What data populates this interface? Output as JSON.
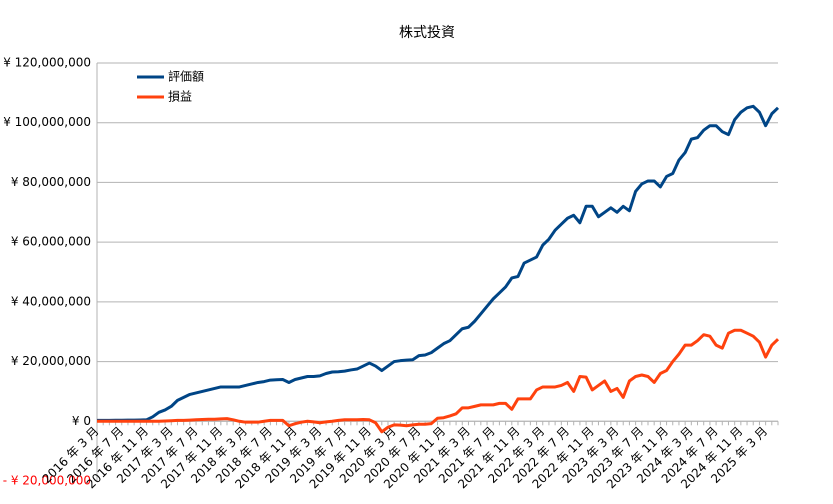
{
  "chart_data": {
    "type": "line",
    "title": "株式投資",
    "categories": [
      "2016 年 3 月",
      null,
      null,
      null,
      "2016 年 7 月",
      null,
      null,
      null,
      "2016 年 11 月",
      null,
      null,
      null,
      "2017 年 3 月",
      null,
      null,
      null,
      "2017 年 7 月",
      null,
      null,
      null,
      "2017 年 11 月",
      null,
      null,
      null,
      "2018 年 3 月",
      null,
      null,
      null,
      "2018 年 7 月",
      null,
      null,
      null,
      "2018 年 11 月",
      null,
      null,
      null,
      "2019 年 3 月",
      null,
      null,
      null,
      "2019 年 7 月",
      null,
      null,
      null,
      "2019 年 11 月",
      null,
      null,
      null,
      "2020 年 3 月",
      null,
      null,
      null,
      "2020 年 7 月",
      null,
      null,
      null,
      "2020 年 11 月",
      null,
      null,
      null,
      "2021 年 3 月",
      null,
      null,
      null,
      "2021 年 7 月",
      null,
      null,
      null,
      "2021 年 11 月",
      null,
      null,
      null,
      "2022 年 3 月",
      null,
      null,
      null,
      "2022 年 7 月",
      null,
      null,
      null,
      "2022 年 11 月",
      null,
      null,
      null,
      "2023 年 3 月",
      null,
      null,
      null,
      "2023 年 7 月",
      null,
      null,
      null,
      "2023 年 11 月",
      null,
      null,
      null,
      "2024 年 3 月",
      null,
      null,
      null,
      "2024 年 7 月",
      null,
      null,
      null,
      "2024 年 11 月",
      null,
      null,
      null,
      "2025 年 3 月",
      null,
      null
    ],
    "series": [
      {
        "name": "評価額",
        "color": "#004586",
        "values": [
          300000,
          300000,
          300000,
          350000,
          350000,
          400000,
          400000,
          450000,
          500000,
          1500000,
          3000000,
          3800000,
          5000000,
          7000000,
          8000000,
          9000000,
          9500000,
          10000000,
          10500000,
          11000000,
          11500000,
          11500000,
          11500000,
          11500000,
          12000000,
          12500000,
          13000000,
          13300000,
          13800000,
          13900000,
          14000000,
          13000000,
          14000000,
          14500000,
          15000000,
          15000000,
          15200000,
          16000000,
          16500000,
          16600000,
          16800000,
          17200000,
          17500000,
          18500000,
          19500000,
          18500000,
          17000000,
          18500000,
          20000000,
          20300000,
          20500000,
          20600000,
          22000000,
          22200000,
          23000000,
          24500000,
          26000000,
          27000000,
          29000000,
          31000000,
          31500000,
          33500000,
          36000000,
          38500000,
          41000000,
          43000000,
          45000000,
          48000000,
          48500000,
          53000000,
          54000000,
          55000000,
          59000000,
          61000000,
          64000000,
          66000000,
          68000000,
          69000000,
          66500000,
          72000000,
          72000000,
          68500000,
          70000000,
          71500000,
          70000000,
          72000000,
          70500000,
          77000000,
          79500000,
          80500000,
          80500000,
          78500000,
          82000000,
          83000000,
          87500000,
          90000000,
          94500000,
          95000000,
          97500000,
          99000000,
          99000000,
          97000000,
          96000000,
          101000000,
          103500000,
          105000000,
          105500000,
          103500000,
          99000000,
          103000000,
          105000000
        ]
      },
      {
        "name": "損益",
        "color": "#ff420e",
        "values": [
          0,
          0,
          0,
          0,
          0,
          0,
          0,
          0,
          0,
          0,
          0,
          100000,
          200000,
          300000,
          300000,
          400000,
          500000,
          600000,
          700000,
          700000,
          800000,
          900000,
          500000,
          0,
          -300000,
          -300000,
          -300000,
          0,
          300000,
          300000,
          300000,
          -1500000,
          -800000,
          -300000,
          0,
          -200000,
          -500000,
          -200000,
          0,
          300000,
          500000,
          500000,
          500000,
          600000,
          500000,
          -500000,
          -3500000,
          -2000000,
          -1200000,
          -1300000,
          -1500000,
          -1200000,
          -1000000,
          -1000000,
          -800000,
          1000000,
          1200000,
          1800000,
          2500000,
          4500000,
          4500000,
          5000000,
          5500000,
          5500000,
          5500000,
          6000000,
          6000000,
          4000000,
          7500000,
          7500000,
          7500000,
          10500000,
          11500000,
          11500000,
          11500000,
          12000000,
          13000000,
          10000000,
          15000000,
          14800000,
          10500000,
          12000000,
          13500000,
          10000000,
          11000000,
          8000000,
          13500000,
          15000000,
          15500000,
          15000000,
          13000000,
          16000000,
          17000000,
          20000000,
          22500000,
          25500000,
          25500000,
          27000000,
          29000000,
          28500000,
          25500000,
          24500000,
          29500000,
          30500000,
          30500000,
          29500000,
          28500000,
          26500000,
          21500000,
          25500000,
          27500000
        ]
      }
    ],
    "ylim": [
      -20000000,
      120000000
    ],
    "yticks": [
      {
        "value": -20000000,
        "label": "- ¥ 20,000,000"
      },
      {
        "value": 0,
        "label": "¥ 0"
      },
      {
        "value": 20000000,
        "label": "¥ 20,000,000"
      },
      {
        "value": 40000000,
        "label": "¥ 40,000,000"
      },
      {
        "value": 60000000,
        "label": "¥ 60,000,000"
      },
      {
        "value": 80000000,
        "label": "¥ 80,000,000"
      },
      {
        "value": 100000000,
        "label": "¥ 100,000,000"
      },
      {
        "value": 120000000,
        "label": "¥ 120,000,000"
      }
    ],
    "negative_tick_color": "#ff0000",
    "grid": true,
    "legend": "top-left"
  }
}
